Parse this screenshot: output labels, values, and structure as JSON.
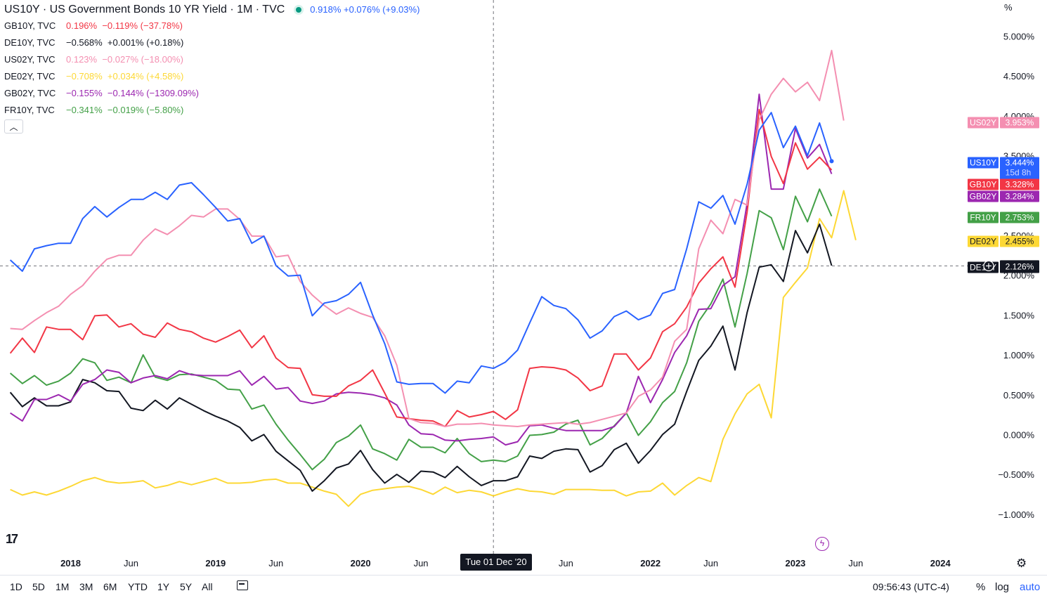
{
  "legend": {
    "main": {
      "symbol": "US10Y · US Government Bonds 10 YR Yield · 1M · TVC",
      "values": "0.918%  +0.076% (+9.03%)"
    },
    "rows": [
      {
        "symbol": "GB10Y, TVC",
        "values": "0.196%  −0.119% (−37.78%)",
        "color": "#f23645"
      },
      {
        "symbol": "DE10Y, TVC",
        "values": "−0.568%  +0.001% (+0.18%)",
        "color": "#131722"
      },
      {
        "symbol": "US02Y, TVC",
        "values": "0.123%  −0.027% (−18.00%)",
        "color": "#f48fb1"
      },
      {
        "symbol": "DE02Y, TVC",
        "values": "−0.708%  +0.034% (+4.58%)",
        "color": "#fdd835"
      },
      {
        "symbol": "GB02Y, TVC",
        "values": "−0.155%  −0.144% (−1309.09%)",
        "color": "#9c27b0"
      },
      {
        "symbol": "FR10Y, TVC",
        "values": "−0.341%  −0.019% (−5.80%)",
        "color": "#43a047"
      }
    ]
  },
  "axis": {
    "y_unit": "%",
    "crosshair_date": "Tue 01 Dec '20",
    "crosshair_value": "2.126%",
    "countdown": "15d 8h"
  },
  "bottom_bar": {
    "ranges": [
      "1D",
      "5D",
      "1M",
      "3M",
      "6M",
      "YTD",
      "1Y",
      "5Y",
      "All"
    ],
    "time": "09:56:43 (UTC-4)",
    "percent": "%",
    "log": "log",
    "auto": "auto"
  },
  "icons": {
    "logo": "tradingview-logo-icon",
    "flash": "lightning-icon",
    "settings": "gear-icon",
    "collapse": "chevron-up-icon",
    "date_range": "calendar-range-icon"
  },
  "chart_data": {
    "type": "line",
    "interval": "1M",
    "x_start": "2017-08",
    "x_ticks": [
      {
        "t": 5,
        "label": "2018",
        "bold": true
      },
      {
        "t": 10,
        "label": "Jun",
        "bold": false
      },
      {
        "t": 17,
        "label": "2019",
        "bold": true
      },
      {
        "t": 22,
        "label": "Jun",
        "bold": false
      },
      {
        "t": 29,
        "label": "2020",
        "bold": true
      },
      {
        "t": 34,
        "label": "Jun",
        "bold": false
      },
      {
        "t": 46,
        "label": "Jun",
        "bold": false
      },
      {
        "t": 53,
        "label": "2022",
        "bold": true
      },
      {
        "t": 58,
        "label": "Jun",
        "bold": false
      },
      {
        "t": 65,
        "label": "2023",
        "bold": true
      },
      {
        "t": 70,
        "label": "Jun",
        "bold": false
      },
      {
        "t": 77,
        "label": "2024",
        "bold": true
      }
    ],
    "y_ticks": [
      5,
      4.5,
      4,
      3.5,
      3,
      2.5,
      2,
      1.5,
      1,
      0.5,
      0,
      -0.5,
      -1
    ],
    "ylim": [
      -1.2,
      5.4
    ],
    "crosshair": {
      "t": 40,
      "y": 2.126
    },
    "series": [
      {
        "name": "US10Y",
        "color": "#2962ff",
        "last": "3.444%",
        "values": [
          2.2,
          2.06,
          2.34,
          2.38,
          2.41,
          2.41,
          2.72,
          2.87,
          2.74,
          2.86,
          2.96,
          2.96,
          3.05,
          2.96,
          3.14,
          3.17,
          3.02,
          2.86,
          2.69,
          2.72,
          2.41,
          2.5,
          2.13,
          2.0,
          2.01,
          1.5,
          1.66,
          1.69,
          1.77,
          1.92,
          1.51,
          1.15,
          0.67,
          0.64,
          0.65,
          0.65,
          0.53,
          0.68,
          0.66,
          0.87,
          0.84,
          0.92,
          1.07,
          1.41,
          1.74,
          1.63,
          1.59,
          1.45,
          1.22,
          1.31,
          1.49,
          1.56,
          1.45,
          1.51,
          1.78,
          1.83,
          2.34,
          2.93,
          2.85,
          3.01,
          2.65,
          3.15,
          3.83,
          4.05,
          3.61,
          3.88,
          3.51,
          3.92,
          3.44
        ]
      },
      {
        "name": "GB10Y",
        "color": "#f23645",
        "last": "3.328%",
        "values": [
          1.03,
          1.22,
          1.04,
          1.36,
          1.33,
          1.33,
          1.2,
          1.5,
          1.51,
          1.36,
          1.4,
          1.27,
          1.23,
          1.41,
          1.33,
          1.3,
          1.22,
          1.17,
          1.24,
          1.32,
          1.1,
          1.25,
          0.97,
          0.85,
          0.84,
          0.51,
          0.49,
          0.49,
          0.62,
          0.69,
          0.82,
          0.53,
          0.23,
          0.21,
          0.19,
          0.18,
          0.11,
          0.31,
          0.23,
          0.26,
          0.3,
          0.2,
          0.32,
          0.84,
          0.86,
          0.85,
          0.82,
          0.72,
          0.56,
          0.62,
          1.02,
          1.02,
          0.82,
          0.97,
          1.3,
          1.4,
          1.61,
          1.91,
          2.09,
          2.24,
          1.86,
          2.8,
          4.09,
          3.5,
          3.16,
          3.67,
          3.34,
          3.49,
          3.33
        ]
      },
      {
        "name": "US02Y",
        "color": "#f48fb1",
        "last": "3.953%",
        "values": [
          1.34,
          1.33,
          1.44,
          1.54,
          1.62,
          1.77,
          1.88,
          2.06,
          2.21,
          2.26,
          2.26,
          2.45,
          2.59,
          2.52,
          2.63,
          2.76,
          2.74,
          2.84,
          2.84,
          2.71,
          2.5,
          2.5,
          2.24,
          2.26,
          1.93,
          1.76,
          1.63,
          1.52,
          1.6,
          1.53,
          1.48,
          1.25,
          0.88,
          0.21,
          0.16,
          0.15,
          0.11,
          0.14,
          0.14,
          0.15,
          0.13,
          0.12,
          0.11,
          0.13,
          0.14,
          0.15,
          0.16,
          0.14,
          0.16,
          0.2,
          0.24,
          0.28,
          0.49,
          0.57,
          0.73,
          1.18,
          1.33,
          2.34,
          2.7,
          2.53,
          2.96,
          2.89,
          3.96,
          4.28,
          4.48,
          4.31,
          4.43,
          4.2,
          4.83,
          3.95
        ]
      },
      {
        "name": "DE10Y",
        "color": "#131722",
        "last": "2.126%",
        "values": [
          0.54,
          0.36,
          0.47,
          0.37,
          0.37,
          0.42,
          0.7,
          0.66,
          0.56,
          0.55,
          0.34,
          0.31,
          0.44,
          0.33,
          0.47,
          0.39,
          0.31,
          0.24,
          0.18,
          0.1,
          -0.07,
          0.01,
          -0.2,
          -0.32,
          -0.44,
          -0.7,
          -0.57,
          -0.41,
          -0.36,
          -0.19,
          -0.43,
          -0.6,
          -0.49,
          -0.59,
          -0.45,
          -0.46,
          -0.53,
          -0.39,
          -0.52,
          -0.63,
          -0.57,
          -0.57,
          -0.52,
          -0.26,
          -0.29,
          -0.2,
          -0.17,
          -0.18,
          -0.46,
          -0.38,
          -0.18,
          -0.1,
          -0.35,
          -0.19,
          0.01,
          0.14,
          0.55,
          0.94,
          1.12,
          1.37,
          0.82,
          1.54,
          2.11,
          2.14,
          1.93,
          2.57,
          2.29,
          2.65,
          2.13
        ]
      },
      {
        "name": "GB02Y",
        "color": "#9c27b0",
        "last": "3.284%",
        "values": [
          0.28,
          0.18,
          0.45,
          0.45,
          0.51,
          0.43,
          0.64,
          0.7,
          0.82,
          0.79,
          0.66,
          0.72,
          0.75,
          0.71,
          0.81,
          0.76,
          0.75,
          0.75,
          0.75,
          0.81,
          0.63,
          0.74,
          0.58,
          0.6,
          0.43,
          0.4,
          0.43,
          0.52,
          0.54,
          0.53,
          0.51,
          0.47,
          0.38,
          0.13,
          0.02,
          0.01,
          -0.06,
          -0.07,
          -0.05,
          -0.04,
          -0.02,
          -0.12,
          -0.08,
          0.12,
          0.13,
          0.09,
          0.06,
          0.06,
          0.06,
          0.06,
          0.11,
          0.28,
          0.74,
          0.41,
          0.7,
          1.04,
          1.25,
          1.58,
          1.59,
          1.88,
          1.99,
          2.91,
          4.28,
          3.09,
          3.09,
          3.85,
          3.48,
          3.65,
          3.28
        ]
      },
      {
        "name": "DE02Y",
        "color": "#fdd835",
        "last": "2.455%",
        "values": [
          -0.68,
          -0.75,
          -0.71,
          -0.75,
          -0.7,
          -0.64,
          -0.57,
          -0.53,
          -0.58,
          -0.6,
          -0.59,
          -0.57,
          -0.66,
          -0.63,
          -0.58,
          -0.62,
          -0.58,
          -0.54,
          -0.6,
          -0.6,
          -0.59,
          -0.56,
          -0.55,
          -0.6,
          -0.6,
          -0.65,
          -0.7,
          -0.74,
          -0.89,
          -0.74,
          -0.69,
          -0.67,
          -0.65,
          -0.64,
          -0.68,
          -0.74,
          -0.65,
          -0.72,
          -0.69,
          -0.71,
          -0.76,
          -0.71,
          -0.67,
          -0.7,
          -0.71,
          -0.74,
          -0.68,
          -0.68,
          -0.68,
          -0.69,
          -0.69,
          -0.76,
          -0.71,
          -0.7,
          -0.6,
          -0.75,
          -0.63,
          -0.53,
          -0.58,
          -0.05,
          0.27,
          0.52,
          0.64,
          0.22,
          1.73,
          1.92,
          2.1,
          2.72,
          2.48,
          3.07,
          2.45
        ]
      },
      {
        "name": "FR10Y",
        "color": "#43a047",
        "last": "2.753%",
        "values": [
          0.78,
          0.65,
          0.75,
          0.63,
          0.68,
          0.78,
          0.96,
          0.91,
          0.69,
          0.73,
          0.66,
          1.01,
          0.73,
          0.69,
          0.76,
          0.77,
          0.73,
          0.69,
          0.58,
          0.57,
          0.33,
          0.38,
          0.14,
          -0.06,
          -0.24,
          -0.43,
          -0.3,
          -0.09,
          -0.01,
          0.13,
          -0.17,
          -0.23,
          -0.31,
          -0.05,
          -0.15,
          -0.15,
          -0.22,
          -0.04,
          -0.23,
          -0.33,
          -0.31,
          -0.33,
          -0.26,
          0.0,
          0.01,
          0.04,
          0.14,
          0.19,
          -0.12,
          -0.04,
          0.12,
          0.28,
          0.0,
          0.17,
          0.41,
          0.55,
          0.91,
          1.43,
          1.65,
          1.96,
          1.36,
          2.03,
          2.82,
          2.73,
          2.33,
          3.0,
          2.68,
          3.09,
          2.75
        ]
      }
    ]
  }
}
